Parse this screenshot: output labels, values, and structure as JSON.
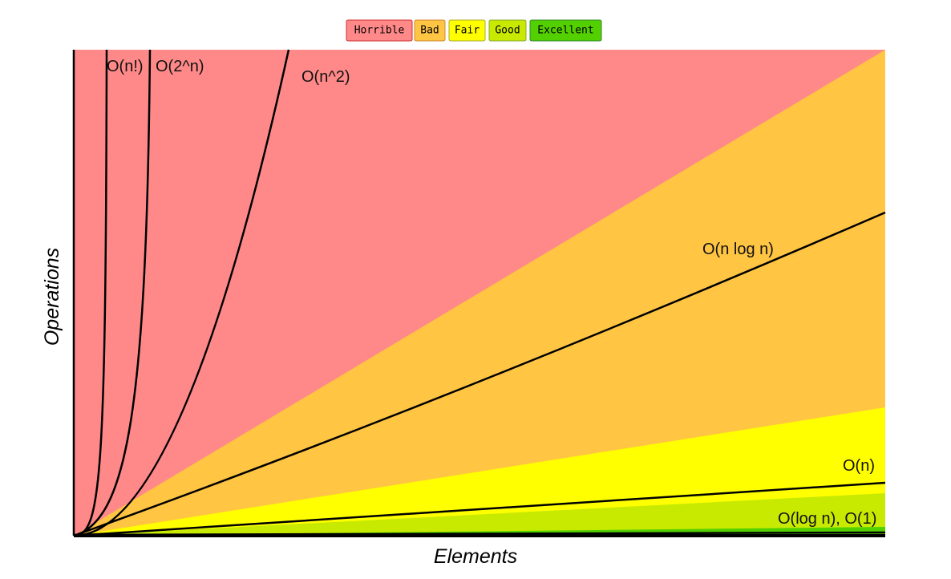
{
  "legend": [
    "Horrible",
    "Bad",
    "Fair",
    "Good",
    "Excellent"
  ],
  "curves": [
    "O(n!)",
    "O(2^n)",
    "O(n^2)",
    "O(n log n)",
    "O(n)",
    "O(log n), O(1)"
  ],
  "x_axis_label": "Elements",
  "y_axis_label": "Operations"
}
